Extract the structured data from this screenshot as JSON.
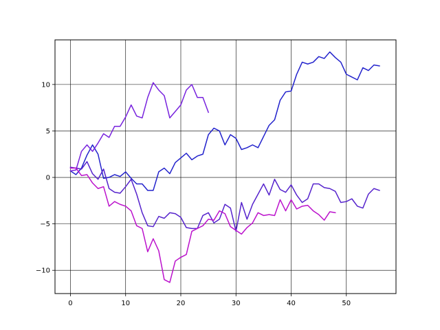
{
  "chart_data": {
    "type": "line",
    "title": "",
    "xlabel": "",
    "ylabel": "",
    "xlim": [
      -2.8,
      59.0
    ],
    "ylim": [
      -12.5,
      14.8
    ],
    "grid": true,
    "x_ticks": [
      0,
      10,
      20,
      30,
      40,
      50
    ],
    "x_tick_labels": [
      "0",
      "10",
      "20",
      "30",
      "40",
      "50"
    ],
    "y_ticks": [
      -10,
      -5,
      0,
      5,
      10
    ],
    "y_tick_labels": [
      "−10",
      "−5",
      "0",
      "5",
      "10"
    ],
    "series": [
      {
        "color": "#2222cc",
        "values": [
          0.7,
          0.3,
          1.0,
          2.4,
          3.5,
          2.5,
          -0.1,
          0.0,
          0.3,
          0.1,
          0.6,
          -0.1,
          -0.7,
          -0.7,
          -1.4,
          -1.4,
          0.6,
          1.0,
          0.4,
          1.6,
          2.1,
          2.6,
          1.9,
          2.3,
          2.5,
          4.6,
          5.3,
          5.0,
          3.5,
          4.6,
          4.2,
          3.0,
          3.2,
          3.5,
          3.2,
          4.4,
          5.6,
          6.2,
          8.3,
          9.2,
          9.3,
          11.1,
          12.4,
          12.2,
          12.4,
          13.0,
          12.8,
          13.5,
          12.9,
          12.4,
          11.1,
          10.8,
          10.5,
          11.8,
          11.5,
          12.1,
          12.0
        ]
      },
      {
        "color": "#7722dd",
        "values": [
          0.7,
          0.8,
          2.8,
          3.5,
          2.8,
          3.7,
          4.7,
          4.3,
          5.5,
          5.5,
          6.5,
          7.8,
          6.6,
          6.4,
          8.6,
          10.2,
          9.4,
          8.8,
          6.4,
          7.1,
          7.8,
          9.4,
          10.0,
          8.6,
          8.6,
          7.0
        ]
      },
      {
        "color": "#5522cc",
        "values": [
          1.1,
          1.0,
          0.9,
          1.7,
          0.4,
          -0.2,
          0.9,
          -1.2,
          -1.6,
          -1.7,
          -1.0,
          -0.2,
          -1.8,
          -3.8,
          -5.2,
          -5.3,
          -4.2,
          -4.4,
          -3.8,
          -3.9,
          -4.3,
          -5.4,
          -5.5,
          -5.5,
          -4.1,
          -3.8,
          -4.9,
          -4.5,
          -2.9,
          -3.3,
          -5.8,
          -2.7,
          -4.5,
          -2.9,
          -1.8,
          -0.7,
          -1.9,
          -0.2,
          -1.3,
          -1.6,
          -0.8,
          -1.9,
          -2.7,
          -2.3,
          -0.7,
          -0.7,
          -1.1,
          -1.2,
          -1.5,
          -2.7,
          -2.6,
          -2.3,
          -3.1,
          -3.3,
          -1.8,
          -1.2,
          -1.4
        ]
      },
      {
        "color": "#bb11cc",
        "values": [
          1.0,
          1.0,
          0.2,
          0.3,
          -0.6,
          -1.2,
          -1.0,
          -3.1,
          -2.6,
          -2.9,
          -3.1,
          -3.6,
          -5.2,
          -5.5,
          -8.0,
          -6.6,
          -7.9,
          -11.0,
          -11.3,
          -9.0,
          -8.6,
          -8.3,
          -5.8,
          -5.5,
          -5.2,
          -4.5,
          -4.6,
          -3.6,
          -3.9,
          -5.3,
          -5.7,
          -6.1,
          -5.4,
          -4.9,
          -3.8,
          -4.1,
          -4.0,
          -4.1,
          -2.4,
          -3.6,
          -2.4,
          -3.4,
          -3.1,
          -3.0,
          -3.6,
          -4.0,
          -4.6,
          -3.7,
          -3.8
        ]
      }
    ]
  }
}
